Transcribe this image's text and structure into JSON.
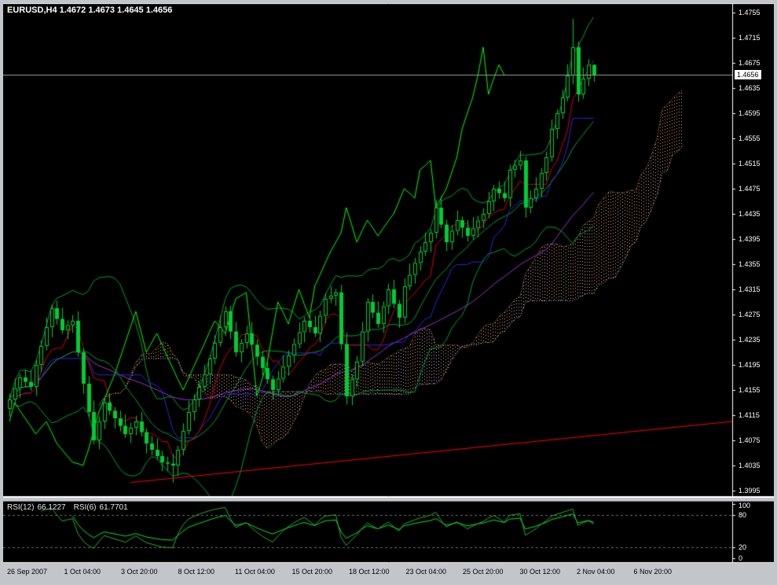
{
  "header": {
    "title": "EURUSD,H4 1.4672 1.4673 1.4645 1.4656"
  },
  "chart_data": {
    "type": "candlestick",
    "symbol": "EURUSD",
    "timeframe": "H4",
    "current_bar": {
      "open": 1.4672,
      "high": 1.4673,
      "low": 1.4645,
      "close": 1.4656
    },
    "price_axis": {
      "min": 1.3995,
      "max": 1.4755,
      "step": 0.004,
      "labels": [
        "1.4755",
        "1.4715",
        "1.4675",
        "1.4635",
        "1.4595",
        "1.4555",
        "1.4515",
        "1.4475",
        "1.4435",
        "1.4395",
        "1.4355",
        "1.4315",
        "1.4275",
        "1.4235",
        "1.4195",
        "1.4155",
        "1.4115",
        "1.4075",
        "1.4035",
        "1.3995"
      ]
    },
    "time_labels": [
      "26 Sep 2007",
      "1 Oct 04:00",
      "3 Oct 20:00",
      "8 Oct 12:00",
      "11 Oct 04:00",
      "15 Oct 20:00",
      "18 Oct 12:00",
      "23 Oct 04:00",
      "25 Oct 20:00",
      "30 Oct 12:00",
      "2 Nov 04:00",
      "6 Nov 20:00"
    ],
    "candle_color": "#00CC33",
    "candles": [
      [
        1.4125,
        1.4149,
        1.4113,
        1.414
      ],
      [
        1.414,
        1.4173,
        1.4133,
        1.4158
      ],
      [
        1.4158,
        1.4181,
        1.4142,
        1.4175
      ],
      [
        1.4175,
        1.4187,
        1.4159,
        1.4168
      ],
      [
        1.4168,
        1.4186,
        1.4154,
        1.416
      ],
      [
        1.416,
        1.4203,
        1.4146,
        1.4195
      ],
      [
        1.4195,
        1.4234,
        1.4183,
        1.4225
      ],
      [
        1.4225,
        1.427,
        1.4218,
        1.4255
      ],
      [
        1.4255,
        1.4291,
        1.4239,
        1.4285
      ],
      [
        1.4285,
        1.4297,
        1.4259,
        1.4268
      ],
      [
        1.4268,
        1.4286,
        1.4244,
        1.425
      ],
      [
        1.425,
        1.4266,
        1.4236,
        1.4258
      ],
      [
        1.4258,
        1.4274,
        1.4246,
        1.4265
      ],
      [
        1.4265,
        1.428,
        1.4208,
        1.4215
      ],
      [
        1.4215,
        1.4221,
        1.4149,
        1.4165
      ],
      [
        1.4165,
        1.4177,
        1.4111,
        1.412
      ],
      [
        1.412,
        1.4138,
        1.4069,
        1.4075
      ],
      [
        1.4075,
        1.4113,
        1.4061,
        1.4105
      ],
      [
        1.4105,
        1.4144,
        1.4093,
        1.4135
      ],
      [
        1.4135,
        1.415,
        1.4115,
        1.4122
      ],
      [
        1.4122,
        1.4128,
        1.4094,
        1.411
      ],
      [
        1.411,
        1.4122,
        1.4089,
        1.4098
      ],
      [
        1.4098,
        1.4116,
        1.4079,
        1.4085
      ],
      [
        1.4085,
        1.4103,
        1.4071,
        1.4095
      ],
      [
        1.4095,
        1.4114,
        1.4083,
        1.4105
      ],
      [
        1.4105,
        1.412,
        1.4081,
        1.4088
      ],
      [
        1.4088,
        1.4094,
        1.4054,
        1.407
      ],
      [
        1.407,
        1.4082,
        1.4051,
        1.406
      ],
      [
        1.406,
        1.4078,
        1.4044,
        1.405
      ],
      [
        1.405,
        1.4058,
        1.4026,
        1.404
      ],
      [
        1.404,
        1.4049,
        1.4026,
        1.4038
      ],
      [
        1.4038,
        1.4053,
        1.4008,
        1.4035
      ],
      [
        1.4035,
        1.4066,
        1.4019,
        1.406
      ],
      [
        1.406,
        1.4102,
        1.4051,
        1.409
      ],
      [
        1.409,
        1.4138,
        1.4084,
        1.412
      ],
      [
        1.412,
        1.4148,
        1.4106,
        1.414
      ],
      [
        1.414,
        1.4169,
        1.4128,
        1.416
      ],
      [
        1.416,
        1.4195,
        1.4153,
        1.418
      ],
      [
        1.418,
        1.4211,
        1.4164,
        1.4205
      ],
      [
        1.4205,
        1.4242,
        1.4196,
        1.423
      ],
      [
        1.423,
        1.4273,
        1.4224,
        1.4255
      ],
      [
        1.4255,
        1.4288,
        1.4241,
        1.428
      ],
      [
        1.428,
        1.4289,
        1.4236,
        1.4248
      ],
      [
        1.4248,
        1.4263,
        1.4208,
        1.4215
      ],
      [
        1.4215,
        1.4236,
        1.4199,
        1.423
      ],
      [
        1.423,
        1.4257,
        1.4221,
        1.4245
      ],
      [
        1.4245,
        1.4263,
        1.4221,
        1.4227
      ],
      [
        1.4227,
        1.4235,
        1.4194,
        1.4208
      ],
      [
        1.4208,
        1.4217,
        1.4178,
        1.419
      ],
      [
        1.419,
        1.4205,
        1.4165,
        1.4172
      ],
      [
        1.4172,
        1.4178,
        1.4139,
        1.4155
      ],
      [
        1.4155,
        1.4185,
        1.4146,
        1.4173
      ],
      [
        1.4173,
        1.421,
        1.4167,
        1.4192
      ],
      [
        1.4192,
        1.4218,
        1.4178,
        1.421
      ],
      [
        1.421,
        1.4237,
        1.4198,
        1.4228
      ],
      [
        1.4228,
        1.4262,
        1.4221,
        1.4247
      ],
      [
        1.4247,
        1.4271,
        1.4231,
        1.4265
      ],
      [
        1.4265,
        1.4277,
        1.4246,
        1.4255
      ],
      [
        1.4255,
        1.4273,
        1.4239,
        1.4245
      ],
      [
        1.4245,
        1.4281,
        1.4231,
        1.4273
      ],
      [
        1.4273,
        1.4309,
        1.4261,
        1.43
      ],
      [
        1.43,
        1.432,
        1.4293,
        1.4305
      ],
      [
        1.4305,
        1.4316,
        1.4289,
        1.431
      ],
      [
        1.431,
        1.4322,
        1.4219,
        1.4228
      ],
      [
        1.4228,
        1.4246,
        1.4132,
        1.4145
      ],
      [
        1.4145,
        1.418,
        1.4131,
        1.4172
      ],
      [
        1.4172,
        1.4209,
        1.416,
        1.42
      ],
      [
        1.42,
        1.4263,
        1.4193,
        1.4248
      ],
      [
        1.4248,
        1.4301,
        1.4232,
        1.4295
      ],
      [
        1.4295,
        1.4307,
        1.4269,
        1.4278
      ],
      [
        1.4278,
        1.4296,
        1.4254,
        1.426
      ],
      [
        1.426,
        1.4296,
        1.4246,
        1.4288
      ],
      [
        1.4288,
        1.4324,
        1.4276,
        1.4315
      ],
      [
        1.4315,
        1.433,
        1.4285,
        1.4292
      ],
      [
        1.4292,
        1.4298,
        1.4254,
        1.427
      ],
      [
        1.427,
        1.4332,
        1.4261,
        1.432
      ],
      [
        1.432,
        1.4356,
        1.4314,
        1.4338
      ],
      [
        1.4338,
        1.4365,
        1.4324,
        1.4357
      ],
      [
        1.4357,
        1.4384,
        1.4345,
        1.4375
      ],
      [
        1.4375,
        1.4405,
        1.4368,
        1.439
      ],
      [
        1.439,
        1.4411,
        1.4374,
        1.4405
      ],
      [
        1.4405,
        1.4457,
        1.4396,
        1.4445
      ],
      [
        1.4445,
        1.4463,
        1.4412,
        1.4418
      ],
      [
        1.4418,
        1.4426,
        1.4376,
        1.439
      ],
      [
        1.439,
        1.4417,
        1.4378,
        1.4408
      ],
      [
        1.4408,
        1.444,
        1.4401,
        1.4425
      ],
      [
        1.4425,
        1.4431,
        1.4397,
        1.4413
      ],
      [
        1.4413,
        1.4425,
        1.4391,
        1.44
      ],
      [
        1.44,
        1.443,
        1.4394,
        1.4412
      ],
      [
        1.4412,
        1.4432,
        1.4398,
        1.4424
      ],
      [
        1.4424,
        1.4444,
        1.4412,
        1.4435
      ],
      [
        1.4435,
        1.447,
        1.4428,
        1.4455
      ],
      [
        1.4455,
        1.4481,
        1.4439,
        1.4475
      ],
      [
        1.4475,
        1.4487,
        1.4459,
        1.4468
      ],
      [
        1.4468,
        1.4486,
        1.4454,
        1.446
      ],
      [
        1.446,
        1.4513,
        1.4446,
        1.4505
      ],
      [
        1.4505,
        1.4521,
        1.4493,
        1.4512
      ],
      [
        1.4512,
        1.4535,
        1.4505,
        1.452
      ],
      [
        1.452,
        1.4526,
        1.4429,
        1.4445
      ],
      [
        1.4445,
        1.4472,
        1.4436,
        1.446
      ],
      [
        1.446,
        1.4493,
        1.4454,
        1.4475
      ],
      [
        1.4475,
        1.4508,
        1.4461,
        1.45
      ],
      [
        1.45,
        1.4534,
        1.4488,
        1.4525
      ],
      [
        1.4525,
        1.4585,
        1.4518,
        1.457
      ],
      [
        1.457,
        1.4601,
        1.4554,
        1.4595
      ],
      [
        1.4595,
        1.4632,
        1.4586,
        1.462
      ],
      [
        1.462,
        1.4673,
        1.4614,
        1.4655
      ],
      [
        1.4655,
        1.4745,
        1.4641,
        1.47
      ],
      [
        1.47,
        1.4709,
        1.4613,
        1.4625
      ],
      [
        1.4625,
        1.4668,
        1.4618,
        1.465
      ],
      [
        1.465,
        1.4681,
        1.4638,
        1.4672
      ],
      [
        1.4672,
        1.4673,
        1.4645,
        1.4656
      ]
    ],
    "indicators": {
      "bollinger": {
        "period": 14,
        "deviation": 2,
        "color": "#009E2F"
      },
      "ichimoku": {
        "tenkan": 6,
        "kijun": 17,
        "senkou_b": 34,
        "shift": 17,
        "tenkan_color": "#D40000",
        "kijun_color": "#2828D7",
        "chikou_color": "#00FF00",
        "span_a_color": "#F4A460",
        "span_b_color": "#D8BFD8"
      },
      "sma_violet": {
        "period": 40,
        "color": "#9933CC"
      },
      "trendline": {
        "x1_frac": 0.175,
        "price1": 1.4008,
        "x2_frac": 1.0,
        "price2": 1.4105,
        "color": "#FF0000"
      },
      "bid_line": {
        "price": 1.4656,
        "label": "1.4656",
        "color": "#9C9C9C"
      }
    },
    "rsi": {
      "items": [
        {
          "name": "RSI(12)",
          "value": "66.1227"
        },
        {
          "name": "RSI(6)",
          "value": "61.7701"
        }
      ],
      "periods": [
        12,
        6
      ],
      "colors": [
        "#00E52E",
        "#2FA92F"
      ],
      "axis_labels": [
        100,
        80,
        20,
        0
      ],
      "dashed_levels": [
        80,
        20
      ],
      "range": [
        0,
        100
      ]
    }
  }
}
